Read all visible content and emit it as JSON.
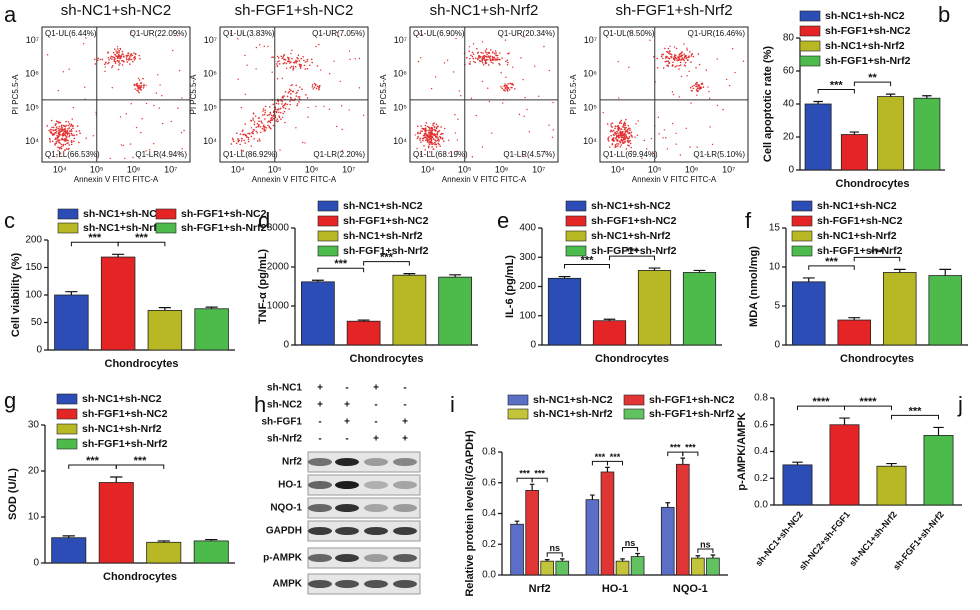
{
  "flow": {
    "panel": "a",
    "xlabel": "Annexin V FITC FITC-A",
    "ylabel": "PI PC5.5-A",
    "xticks": [
      "10⁴",
      "10⁵",
      "10⁶",
      "10⁷"
    ],
    "yticks": [
      "10⁴",
      "10⁵",
      "10⁶",
      "10⁷"
    ],
    "panels": [
      {
        "title": "sh-NC1+sh-NC2",
        "quadrants": {
          "UL": "Q1-UL(6.44%)",
          "UR": "Q1-UR(22.09%)",
          "LL": "Q1-LL(66.53%)",
          "LR": "Q1-LR(4.94%)"
        }
      },
      {
        "title": "sh-FGF1+sh-NC2",
        "quadrants": {
          "UL": "Q1-UL(3.83%)",
          "UR": "Q1-UR(7.05%)",
          "LL": "Q1-LL(86.92%)",
          "LR": "Q1-LR(2.20%)"
        }
      },
      {
        "title": "sh-NC1+sh-Nrf2",
        "quadrants": {
          "UL": "Q1-UL(6.90%)",
          "UR": "Q1-UR(20.34%)",
          "LL": "Q1-LL(68.19%)",
          "LR": "Q1-LR(4.57%)"
        }
      },
      {
        "title": "sh-FGF1+sh-Nrf2",
        "quadrants": {
          "UL": "Q1-UL(8.50%)",
          "UR": "Q1-UR(16.46%)",
          "LL": "Q1-LL(69.94%)",
          "LR": "Q1-LR(5.10%)"
        }
      }
    ]
  },
  "blot": {
    "panel": "h",
    "conditions": [
      {
        "label": "sh-NC1",
        "signs": [
          "+",
          "-",
          "+",
          "-"
        ]
      },
      {
        "label": "sh-NC2",
        "signs": [
          "+",
          "+",
          "-",
          "-"
        ]
      },
      {
        "label": "sh-FGF1",
        "signs": [
          "-",
          "+",
          "-",
          "+"
        ]
      },
      {
        "label": "sh-Nrf2",
        "signs": [
          "-",
          "-",
          "+",
          "+"
        ]
      }
    ],
    "bands": [
      "Nrf2",
      "HO-1",
      "NQO-1",
      "GAPDH",
      "p-AMPK",
      "AMPK"
    ]
  },
  "chart_data": [
    {
      "type": "bar",
      "panel": "b",
      "ylabel": "Cell apoptotic rate (%)",
      "xlabel": "Chondrocytes",
      "ylim": [
        0,
        80
      ],
      "yticks": [
        0,
        20,
        40,
        60,
        80
      ],
      "series": [
        {
          "name": "sh-NC1+sh-NC2",
          "color": "#2b4db5",
          "values": [
            40
          ],
          "errors": [
            1.5
          ]
        },
        {
          "name": "sh-FGF1+sh-NC2",
          "color": "#e52525",
          "values": [
            21.5
          ],
          "errors": [
            1.5
          ]
        },
        {
          "name": "sh-NC1+sh-Nrf2",
          "color": "#b8b825",
          "values": [
            44.5
          ],
          "errors": [
            1.5
          ]
        },
        {
          "name": "sh-FGF1+sh-Nrf2",
          "color": "#4cbb4c",
          "values": [
            43.5
          ],
          "errors": [
            1.5
          ]
        }
      ],
      "annotations": [
        "***",
        "**"
      ]
    },
    {
      "type": "bar",
      "panel": "c",
      "ylabel": "Cell viability (%)",
      "xlabel": "Chondrocytes",
      "ylim": [
        0,
        200
      ],
      "yticks": [
        0,
        50,
        100,
        150,
        200
      ],
      "series": [
        {
          "name": "sh-NC1+sh-NC2",
          "color": "#2b4db5",
          "values": [
            100
          ],
          "errors": [
            6
          ]
        },
        {
          "name": "sh-FGF1+sh-NC2",
          "color": "#e52525",
          "values": [
            169
          ],
          "errors": [
            5
          ]
        },
        {
          "name": "sh-NC1+sh-Nrf2",
          "color": "#b8b825",
          "values": [
            72
          ],
          "errors": [
            5
          ]
        },
        {
          "name": "sh-FGF1+sh-Nrf2",
          "color": "#4cbb4c",
          "values": [
            75
          ],
          "errors": [
            3
          ]
        }
      ],
      "annotations": [
        "***",
        "***"
      ]
    },
    {
      "type": "bar",
      "panel": "d",
      "ylabel": "TNF-α (pg/mL)",
      "xlabel": "Chondrocytes",
      "ylim": [
        0,
        3000
      ],
      "yticks": [
        0,
        1000,
        2000,
        3000
      ],
      "series": [
        {
          "name": "sh-NC1+sh-NC2",
          "color": "#2b4db5",
          "values": [
            1620
          ],
          "errors": [
            40
          ]
        },
        {
          "name": "sh-FGF1+sh-NC2",
          "color": "#e52525",
          "values": [
            610
          ],
          "errors": [
            30
          ]
        },
        {
          "name": "sh-NC1+sh-Nrf2",
          "color": "#b8b825",
          "values": [
            1790
          ],
          "errors": [
            40
          ]
        },
        {
          "name": "sh-FGF1+sh-Nrf2",
          "color": "#4cbb4c",
          "values": [
            1740
          ],
          "errors": [
            60
          ]
        }
      ],
      "annotations": [
        "***",
        "***"
      ]
    },
    {
      "type": "bar",
      "panel": "e",
      "ylabel": "IL-6 (pg/mL)",
      "xlabel": "Chondrocytes",
      "ylim": [
        0,
        400
      ],
      "yticks": [
        0,
        100,
        200,
        300,
        400
      ],
      "series": [
        {
          "name": "sh-NC1+sh-NC2",
          "color": "#2b4db5",
          "values": [
            228
          ],
          "errors": [
            6
          ]
        },
        {
          "name": "sh-FGF1+sh-NC2",
          "color": "#e52525",
          "values": [
            83
          ],
          "errors": [
            5
          ]
        },
        {
          "name": "sh-NC1+sh-Nrf2",
          "color": "#b8b825",
          "values": [
            255
          ],
          "errors": [
            8
          ]
        },
        {
          "name": "sh-FGF1+sh-Nrf2",
          "color": "#4cbb4c",
          "values": [
            248
          ],
          "errors": [
            7
          ]
        }
      ],
      "annotations": [
        "***",
        "***"
      ]
    },
    {
      "type": "bar",
      "panel": "f",
      "ylabel": "MDA (nmol/mg)",
      "xlabel": "Chondrocytes",
      "ylim": [
        0,
        15
      ],
      "yticks": [
        0,
        5,
        10,
        15
      ],
      "series": [
        {
          "name": "sh-NC1+sh-NC2",
          "color": "#2b4db5",
          "values": [
            8.1
          ],
          "errors": [
            0.5
          ]
        },
        {
          "name": "sh-FGF1+sh-NC2",
          "color": "#e52525",
          "values": [
            3.2
          ],
          "errors": [
            0.3
          ]
        },
        {
          "name": "sh-NC1+sh-Nrf2",
          "color": "#b8b825",
          "values": [
            9.3
          ],
          "errors": [
            0.4
          ]
        },
        {
          "name": "sh-FGF1+sh-Nrf2",
          "color": "#4cbb4c",
          "values": [
            8.9
          ],
          "errors": [
            0.8
          ]
        }
      ],
      "annotations": [
        "***",
        "***"
      ]
    },
    {
      "type": "bar",
      "panel": "g",
      "ylabel": "SOD (U/L)",
      "xlabel": "Chondrocytes",
      "ylim": [
        0,
        30
      ],
      "yticks": [
        0,
        10,
        20,
        30
      ],
      "series": [
        {
          "name": "sh-NC1+sh-NC2",
          "color": "#2b4db5",
          "values": [
            5.5
          ],
          "errors": [
            0.4
          ]
        },
        {
          "name": "sh-FGF1+sh-NC2",
          "color": "#e52525",
          "values": [
            17.5
          ],
          "errors": [
            1.2
          ]
        },
        {
          "name": "sh-NC1+sh-Nrf2",
          "color": "#b8b825",
          "values": [
            4.5
          ],
          "errors": [
            0.3
          ]
        },
        {
          "name": "sh-FGF1+sh-Nrf2",
          "color": "#4cbb4c",
          "values": [
            4.8
          ],
          "errors": [
            0.3
          ]
        }
      ],
      "annotations": [
        "***",
        "***"
      ]
    },
    {
      "type": "bar",
      "panel": "i",
      "ylabel": "Relative protein levels(/GAPDH)",
      "categories": [
        "Nrf2",
        "HO-1",
        "NQO-1"
      ],
      "ylim": [
        0,
        0.8
      ],
      "yticks": [
        {
          "value": 0,
          "label": "0.0"
        },
        0.2,
        0.4,
        0.6,
        0.8
      ],
      "series": [
        {
          "name": "sh-NC1+sh-NC2",
          "color": "#5b6fc8",
          "values": [
            0.33,
            0.49,
            0.44
          ],
          "errors": [
            0.02,
            0.03,
            0.03
          ]
        },
        {
          "name": "sh-FGF1+sh-NC2",
          "color": "#e03535",
          "values": [
            0.55,
            0.67,
            0.72
          ],
          "errors": [
            0.04,
            0.03,
            0.04
          ]
        },
        {
          "name": "sh-NC1+sh-Nrf2",
          "color": "#c4c43a",
          "values": [
            0.09,
            0.09,
            0.11
          ],
          "errors": [
            0.01,
            0.015,
            0.015
          ]
        },
        {
          "name": "sh-FGF1+sh-Nrf2",
          "color": "#62c262",
          "values": [
            0.09,
            0.12,
            0.11
          ],
          "errors": [
            0.015,
            0.02,
            0.02
          ]
        }
      ],
      "annotations": [
        [
          "***",
          "***",
          "ns"
        ],
        [
          "***",
          "***",
          "ns"
        ],
        [
          "***",
          "***",
          "ns"
        ]
      ]
    },
    {
      "type": "bar",
      "panel": "j",
      "ylabel": "p-AMPK/AMPK",
      "categories": [
        "sh-NC1+sh-NC2",
        "sh-NC2+sh-FGF1",
        "sh-NC1+sh-Nrf2",
        "sh-FGF1+sh-Nrf2"
      ],
      "values": [
        0.3,
        0.6,
        0.29,
        0.52
      ],
      "errors": [
        0.02,
        0.05,
        0.02,
        0.06
      ],
      "colors": [
        "#2b4db5",
        "#e52525",
        "#b8b825",
        "#4cbb4c"
      ],
      "ylim": [
        0,
        0.8
      ],
      "yticks": [
        {
          "value": 0,
          "label": "0.0"
        },
        0.2,
        0.4,
        0.6,
        0.8
      ],
      "annotations": [
        "****",
        "****",
        "***"
      ]
    }
  ]
}
